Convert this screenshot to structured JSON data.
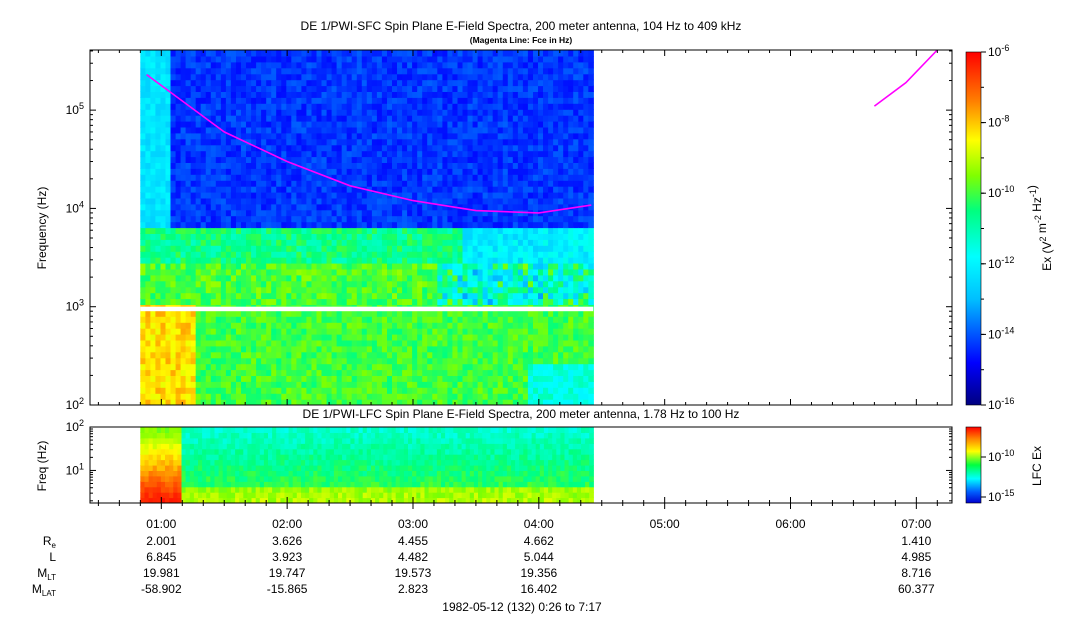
{
  "chart_data": [
    {
      "type": "heatmap",
      "title": "DE 1/PWI-SFC  Spin Plane E-Field Spectra, 200 meter antenna, 104 Hz to 409 kHz",
      "subtitle": "(Magenta Line: Fce in Hz)",
      "ylabel": "Frequency (Hz)",
      "yscale": "log",
      "ylim": [
        100,
        409000
      ],
      "yticks": [
        "10^2",
        "10^3",
        "10^4",
        "10^5"
      ],
      "colorbar": {
        "label": "Ex (V^2 m^-2 Hz^-1)",
        "scale": "log",
        "range": [
          1e-16,
          1e-06
        ],
        "ticks": [
          "10^-6",
          "10^-8",
          "10^-10",
          "10^-12",
          "10^-14",
          "10^-16"
        ]
      },
      "data_time_range": [
        "00:50",
        "04:26"
      ],
      "data_gap_hz": [
        1000,
        900
      ],
      "fce_line": {
        "name": "Fce in Hz",
        "color": "#ff00ff",
        "segments": [
          [
            [
              "00:53",
              230000
            ],
            [
              "01:30",
              60000
            ],
            [
              "02:00",
              30000
            ],
            [
              "02:30",
              17000
            ],
            [
              "03:00",
              12000
            ],
            [
              "03:30",
              9500
            ],
            [
              "04:00",
              9000
            ],
            [
              "04:25",
              10800
            ]
          ],
          [
            [
              "06:40",
              110000
            ],
            [
              "06:55",
              190000
            ],
            [
              "07:10",
              409000
            ]
          ]
        ]
      }
    },
    {
      "type": "heatmap",
      "title": "DE 1/PWI-LFC  Spin Plane E-Field Spectra, 200 meter antenna, 1.78 Hz to 100 Hz",
      "ylabel": "Freq (Hz)",
      "yscale": "log",
      "ylim": [
        1.78,
        100
      ],
      "yticks": [
        "10^1",
        "10^2"
      ],
      "colorbar": {
        "label": "LFC Ex",
        "scale": "log",
        "ticks": [
          "10^-10",
          "10^-15"
        ]
      },
      "data_time_range": [
        "00:50",
        "04:26"
      ]
    }
  ],
  "xaxis": {
    "start": "00:26",
    "end": "07:17",
    "ticks": [
      "01:00",
      "02:00",
      "03:00",
      "04:00",
      "05:00",
      "06:00",
      "07:00"
    ],
    "caption": "1982-05-12 (132) 0:26 to 7:17"
  },
  "ephemeris": {
    "rows": [
      {
        "label": "R",
        "sub": "e",
        "values": [
          "2.001",
          "3.626",
          "4.455",
          "4.662",
          "",
          "",
          "1.410"
        ]
      },
      {
        "label": "L",
        "sub": "",
        "values": [
          "6.845",
          "3.923",
          "4.482",
          "5.044",
          "",
          "",
          "4.985"
        ]
      },
      {
        "label": "M",
        "sub": "LT",
        "values": [
          "19.981",
          "19.747",
          "19.573",
          "19.356",
          "",
          "",
          "8.716"
        ]
      },
      {
        "label": "M",
        "sub": "LAT",
        "values": [
          "-58.902",
          "-15.865",
          "2.823",
          "16.402",
          "",
          "",
          "60.377"
        ]
      }
    ]
  }
}
